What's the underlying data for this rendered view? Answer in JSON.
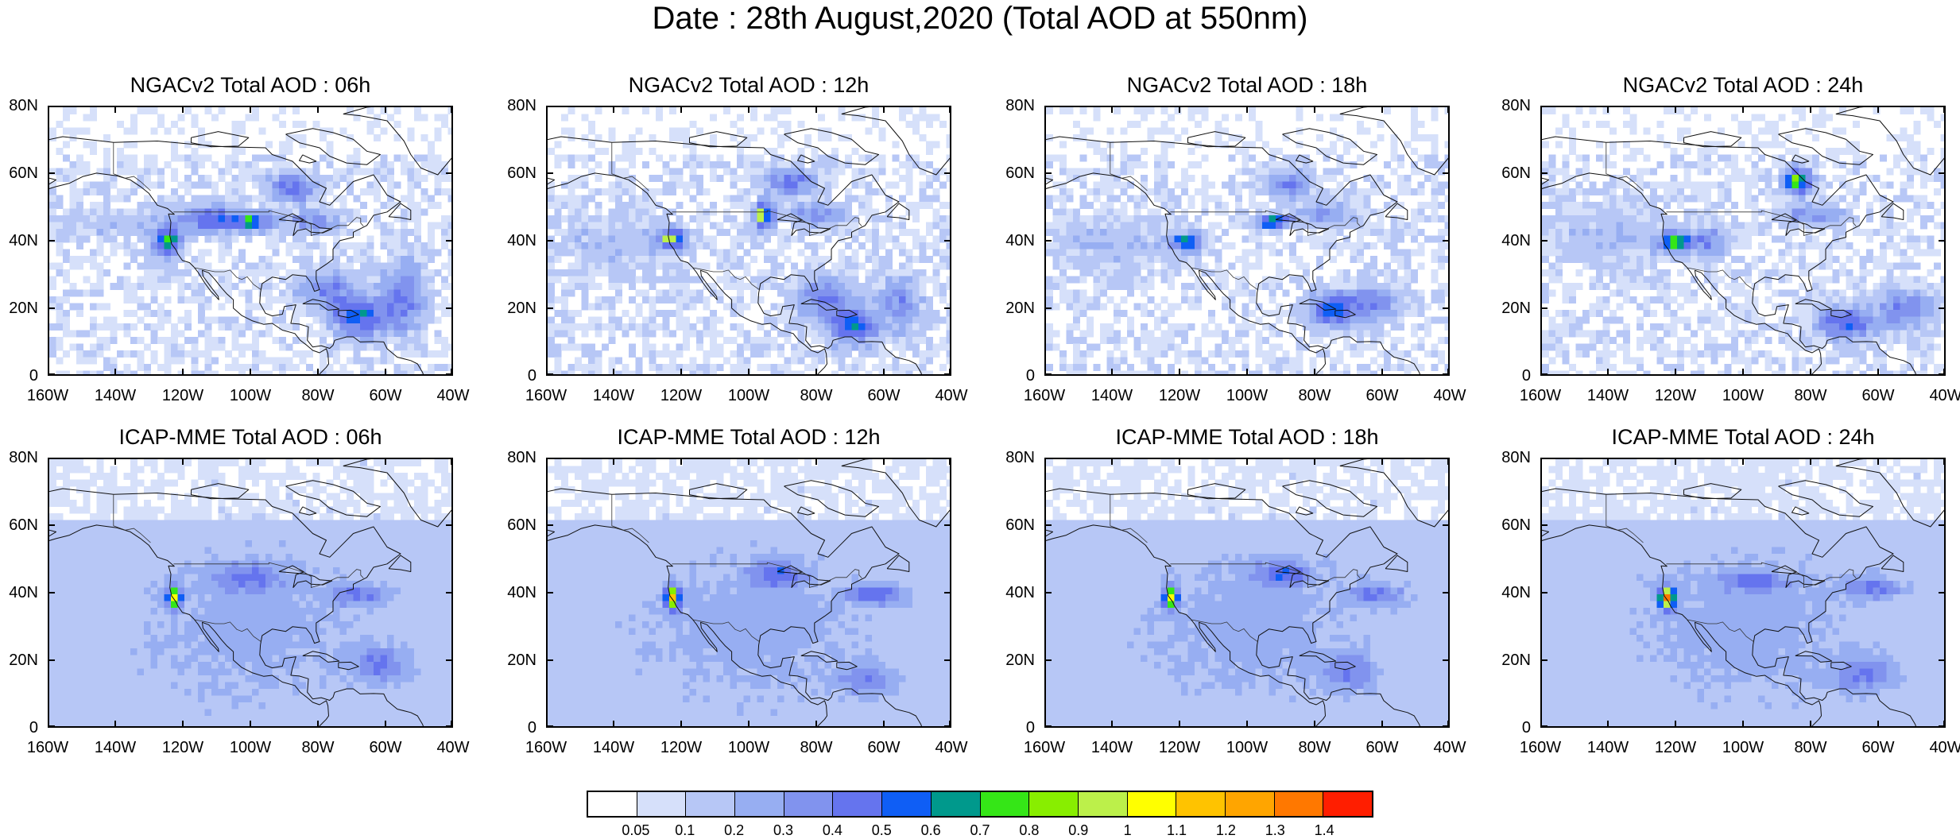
{
  "title": "Date : 28th August,2020 (Total AOD at 550nm)",
  "panels": [
    {
      "title": "NGACv2 Total AOD : 06h"
    },
    {
      "title": "NGACv2 Total AOD : 12h"
    },
    {
      "title": "NGACv2 Total AOD : 18h"
    },
    {
      "title": "NGACv2 Total AOD : 24h"
    },
    {
      "title": "ICAP-MME Total AOD : 06h"
    },
    {
      "title": "ICAP-MME Total AOD : 12h"
    },
    {
      "title": "ICAP-MME Total AOD : 18h"
    },
    {
      "title": "ICAP-MME Total AOD : 24h"
    }
  ],
  "map_extent": {
    "lon_min": -160,
    "lon_max": -40,
    "lat_min": 0,
    "lat_max": 80
  },
  "lat_labels": [
    "80N",
    "60N",
    "40N",
    "20N",
    "0"
  ],
  "lon_labels": [
    "160W",
    "140W",
    "120W",
    "100W",
    "80W",
    "60W",
    "40W"
  ],
  "colorbar": {
    "labels": [
      "0.05",
      "0.1",
      "0.2",
      "0.3",
      "0.4",
      "0.5",
      "0.6",
      "0.7",
      "0.8",
      "0.9",
      "1",
      "1.1",
      "1.2",
      "1.3",
      "1.4"
    ],
    "colors": [
      "#ffffff",
      "#d6e0fa",
      "#b7c7f6",
      "#97aef2",
      "#8193ee",
      "#6574ee",
      "#0f5ef5",
      "#00998c",
      "#35e617",
      "#88ee00",
      "#bcf04a",
      "#ffff00",
      "#ffc300",
      "#ffa500",
      "#ff7800",
      "#ff1e00"
    ]
  }
}
